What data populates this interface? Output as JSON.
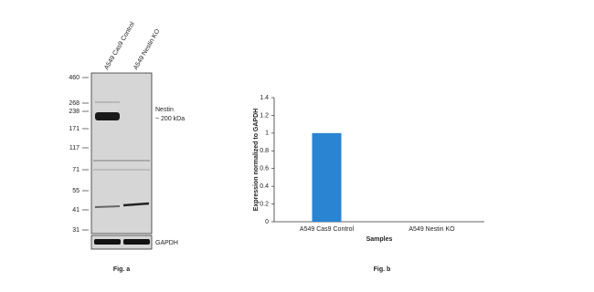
{
  "blot": {
    "lanes": [
      "A549 Cas9 Control",
      "A549 Nestin KO"
    ],
    "markers": [
      "460",
      "268",
      "238",
      "171",
      "117",
      "71",
      "55",
      "41",
      "31"
    ],
    "target": "Nestin",
    "target_size": "~ 200 kDa",
    "loading_control": "GAPDH",
    "caption": "Fig. a"
  },
  "chart_data": {
    "type": "bar",
    "caption": "Fig. b",
    "x_label": "Samples",
    "y_label": "Expression normalized to GAPDH",
    "categories": [
      "A549 Cas9 Control",
      "A549 Nestin KO"
    ],
    "values": [
      1,
      0
    ],
    "color": "#2a84d2",
    "ylim": [
      0,
      1.4
    ],
    "yticks": [
      0,
      0.2,
      0.4,
      0.6,
      0.8,
      1,
      1.2,
      1.4
    ]
  }
}
